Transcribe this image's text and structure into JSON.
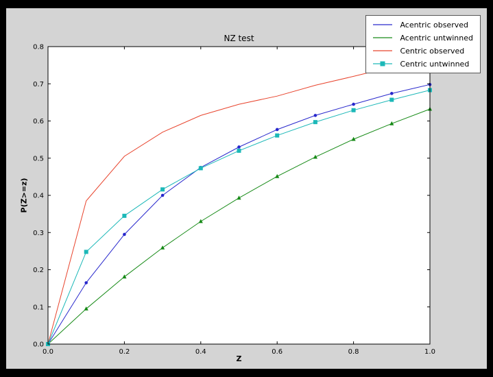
{
  "palette": {
    "figure_bg": "#d4d4d4",
    "axes_bg": "#ffffff",
    "frame": "#000000",
    "outer_bg": "#000000"
  },
  "chart_data": {
    "type": "line",
    "title": "NZ test",
    "xlabel": "Z",
    "ylabel": "P(Z>=z)",
    "xlim": [
      0.0,
      1.0
    ],
    "ylim": [
      0.0,
      0.8
    ],
    "grid": false,
    "legend_position": "upper right",
    "xticks": [
      0.0,
      0.2,
      0.4,
      0.6,
      0.8,
      1.0
    ],
    "xtick_labels": [
      "0.0",
      "0.2",
      "0.4",
      "0.6",
      "0.8",
      "1.0"
    ],
    "yticks": [
      0.0,
      0.1,
      0.2,
      0.3,
      0.4,
      0.5,
      0.6,
      0.7,
      0.8
    ],
    "ytick_labels": [
      "0.0",
      "0.1",
      "0.2",
      "0.3",
      "0.4",
      "0.5",
      "0.6",
      "0.7",
      "0.8"
    ],
    "x": [
      0.0,
      0.1,
      0.2,
      0.3,
      0.4,
      0.5,
      0.6,
      0.7,
      0.8,
      0.9,
      1.0
    ],
    "series": [
      {
        "name": "Acentric observed",
        "color": "#2727cc",
        "marker": "circle",
        "legend_marker": false,
        "values": [
          0.0,
          0.165,
          0.295,
          0.4,
          0.475,
          0.53,
          0.577,
          0.615,
          0.645,
          0.674,
          0.698
        ]
      },
      {
        "name": "Acentric untwinned",
        "color": "#168a16",
        "marker": "triangle",
        "legend_marker": false,
        "values": [
          0.0,
          0.095,
          0.181,
          0.259,
          0.33,
          0.393,
          0.451,
          0.503,
          0.551,
          0.593,
          0.632
        ]
      },
      {
        "name": "Centric observed",
        "color": "#e8432c",
        "marker": "none",
        "legend_marker": false,
        "values": [
          0.0,
          0.385,
          0.505,
          0.57,
          0.615,
          0.645,
          0.667,
          0.696,
          0.72,
          0.745,
          0.765
        ]
      },
      {
        "name": "Centric untwinned",
        "color": "#1cb8b8",
        "marker": "square",
        "legend_marker": true,
        "values": [
          0.0,
          0.248,
          0.345,
          0.416,
          0.473,
          0.52,
          0.561,
          0.597,
          0.629,
          0.657,
          0.683
        ]
      }
    ]
  }
}
